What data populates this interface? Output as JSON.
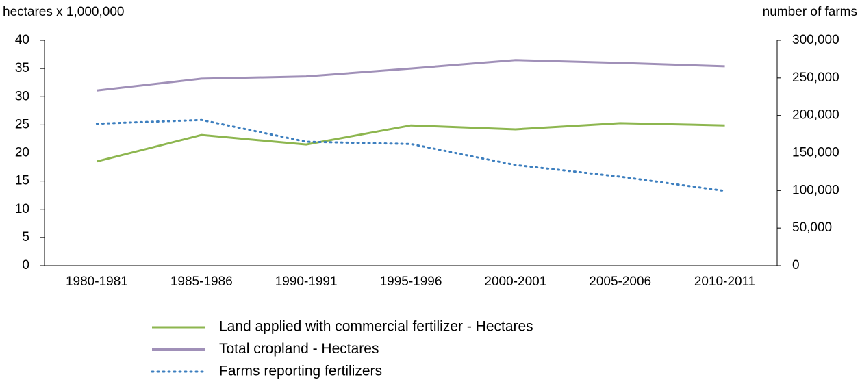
{
  "chart_data": {
    "type": "line",
    "y_label": "hectares x 1,000,000",
    "y2_label": "number of farms",
    "categories": [
      "1980-1981",
      "1985-1986",
      "1990-1991",
      "1995-1996",
      "2000-2001",
      "2005-2006",
      "2010-2011"
    ],
    "series": [
      {
        "name": "Land applied with commercial fertilizer - Hectares",
        "color": "#8db64f",
        "values": [
          18.5,
          23.2,
          21.5,
          24.9,
          24.2,
          25.3,
          24.9
        ]
      },
      {
        "name": "Total cropland - Hectares",
        "color": "#a090b8",
        "values": [
          31.1,
          33.2,
          33.6,
          35.0,
          36.5,
          36.0,
          35.4
        ]
      },
      {
        "name": "Farms reporting fertilizers",
        "color": "#3d7fbf",
        "dash": "dotted",
        "axis": "y2",
        "values": [
          189000,
          194000,
          165000,
          162000,
          134000,
          118500,
          99500
        ]
      }
    ],
    "ylim": [
      0,
      40
    ],
    "yticks": [
      0,
      5,
      10,
      15,
      20,
      25,
      30,
      35,
      40
    ],
    "y2lim": [
      0,
      300000
    ],
    "y2ticks": [
      0,
      {
        "value": 50000,
        "label": "50,000"
      },
      {
        "value": 100000,
        "label": "100,000"
      },
      {
        "value": 150000,
        "label": "150,000"
      },
      {
        "value": 200000,
        "label": "200,000"
      },
      {
        "value": 250000,
        "label": "250,000"
      },
      {
        "value": 300000,
        "label": "300,000"
      }
    ],
    "grid": false
  }
}
